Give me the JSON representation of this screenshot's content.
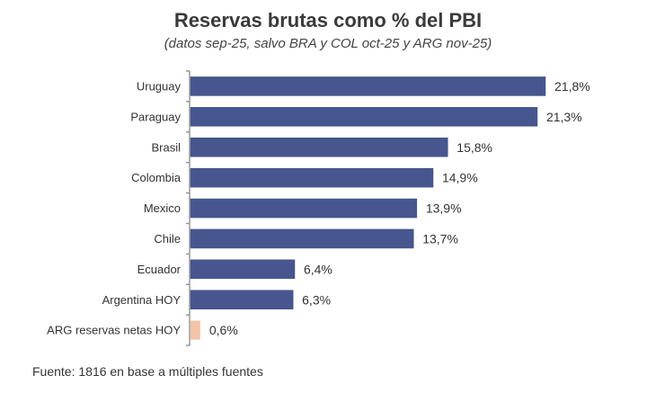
{
  "chart_data": {
    "type": "bar",
    "orientation": "horizontal",
    "title": "Reservas brutas como % del PBI",
    "subtitle": "(datos sep-25, salvo BRA y COL oct-25 y ARG nov-25)",
    "categories": [
      "Uruguay",
      "Paraguay",
      "Brasil",
      "Colombia",
      "Mexico",
      "Chile",
      "Ecuador",
      "Argentina HOY",
      "ARG reservas netas HOY"
    ],
    "values": [
      21.8,
      21.3,
      15.8,
      14.9,
      13.9,
      13.7,
      6.4,
      6.3,
      0.6
    ],
    "labels": [
      "21,8%",
      "21,3%",
      "15,8%",
      "14,9%",
      "13,9%",
      "13,7%",
      "6,4%",
      "6,3%",
      "0,6%"
    ],
    "colors": [
      "#47568f",
      "#47568f",
      "#47568f",
      "#47568f",
      "#47568f",
      "#47568f",
      "#47568f",
      "#47568f",
      "#f4c4a8"
    ],
    "xlabel": "",
    "ylabel": "",
    "xlim": [
      0,
      22
    ],
    "grid": false
  },
  "source": "Fuente: 1816 en base a múltiples fuentes"
}
